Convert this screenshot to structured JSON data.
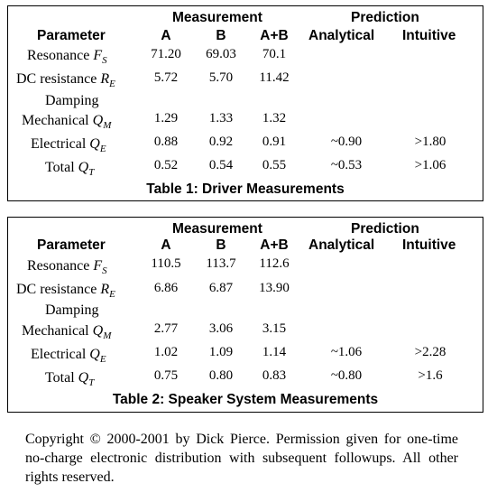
{
  "tables": [
    {
      "caption": "Table 1: Driver Measurements",
      "group_measurement": "Measurement",
      "group_prediction": "Prediction",
      "col_parameter": "Parameter",
      "col_a": "A",
      "col_b": "B",
      "col_ab": "A+B",
      "col_analytical": "Analytical",
      "col_intuitive": "Intuitive",
      "rows": {
        "resonance": {
          "label": "Resonance",
          "sym": "F",
          "sub": "S",
          "a": "71.20",
          "b": "69.03",
          "ab": "70.1",
          "analytical": "",
          "intuitive": ""
        },
        "dc_resistance": {
          "label": "DC resistance",
          "sym": "R",
          "sub": "E",
          "a": "5.72",
          "b": "5.70",
          "ab": "11.42",
          "analytical": "",
          "intuitive": ""
        },
        "damping": {
          "label": "Damping"
        },
        "mechanical": {
          "label": "Mechanical",
          "sym": "Q",
          "sub": "M",
          "a": "1.29",
          "b": "1.33",
          "ab": "1.32",
          "analytical": "",
          "intuitive": ""
        },
        "electrical": {
          "label": "Electrical",
          "sym": "Q",
          "sub": "E",
          "a": "0.88",
          "b": "0.92",
          "ab": "0.91",
          "analytical": "~0.90",
          "intuitive": ">1.80"
        },
        "total": {
          "label": "Total",
          "sym": "Q",
          "sub": "T",
          "a": "0.52",
          "b": "0.54",
          "ab": "0.55",
          "analytical": "~0.53",
          "intuitive": ">1.06"
        }
      }
    },
    {
      "caption": "Table 2: Speaker System Measurements",
      "group_measurement": "Measurement",
      "group_prediction": "Prediction",
      "col_parameter": "Parameter",
      "col_a": "A",
      "col_b": "B",
      "col_ab": "A+B",
      "col_analytical": "Analytical",
      "col_intuitive": "Intuitive",
      "rows": {
        "resonance": {
          "label": "Resonance",
          "sym": "F",
          "sub": "S",
          "a": "110.5",
          "b": "113.7",
          "ab": "112.6",
          "analytical": "",
          "intuitive": ""
        },
        "dc_resistance": {
          "label": "DC resistance",
          "sym": "R",
          "sub": "E",
          "a": "6.86",
          "b": "6.87",
          "ab": "13.90",
          "analytical": "",
          "intuitive": ""
        },
        "damping": {
          "label": "Damping"
        },
        "mechanical": {
          "label": "Mechanical",
          "sym": "Q",
          "sub": "M",
          "a": "2.77",
          "b": "3.06",
          "ab": "3.15",
          "analytical": "",
          "intuitive": ""
        },
        "electrical": {
          "label": "Electrical",
          "sym": "Q",
          "sub": "E",
          "a": "1.02",
          "b": "1.09",
          "ab": "1.14",
          "analytical": "~1.06",
          "intuitive": ">2.28"
        },
        "total": {
          "label": "Total",
          "sym": "Q",
          "sub": "T",
          "a": "0.75",
          "b": "0.80",
          "ab": "0.83",
          "analytical": "~0.80",
          "intuitive": ">1.6"
        }
      }
    }
  ],
  "copyright": "Copyright © 2000-2001 by Dick Pierce. Permission given for one-time no-charge electronic distribution with subsequent followups. All other rights reserved."
}
